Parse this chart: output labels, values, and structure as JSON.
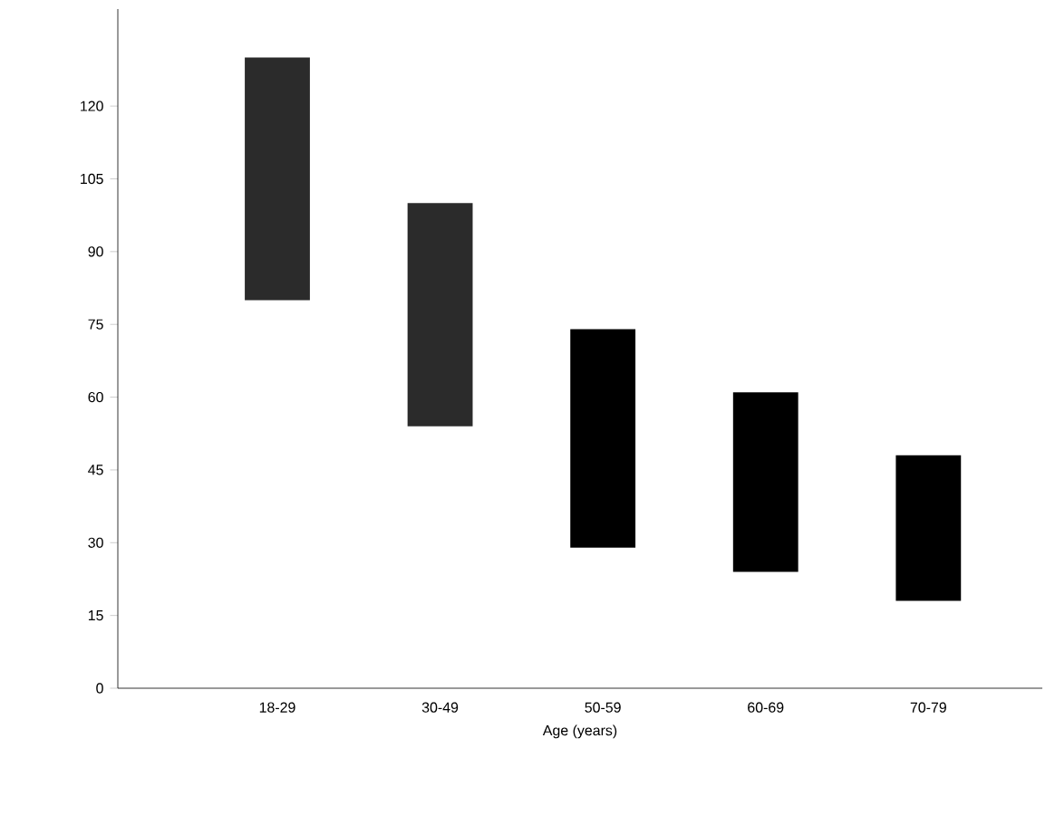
{
  "chart_data": {
    "type": "bar",
    "xlabel": "Age (years)",
    "categories": [
      "18-29",
      "30-49",
      "50-59",
      "60-69",
      "70-79"
    ],
    "base": [
      80,
      54,
      29,
      24,
      18
    ],
    "values": [
      50,
      46,
      45,
      37,
      30
    ],
    "colors": [
      "#2b2b2b",
      "#2b2b2b",
      "#000000",
      "#000000",
      "#000000"
    ],
    "ylim": [
      0,
      140
    ],
    "yticks": [
      0,
      15,
      30,
      45,
      60,
      75,
      90,
      105,
      120
    ],
    "grid": false
  }
}
